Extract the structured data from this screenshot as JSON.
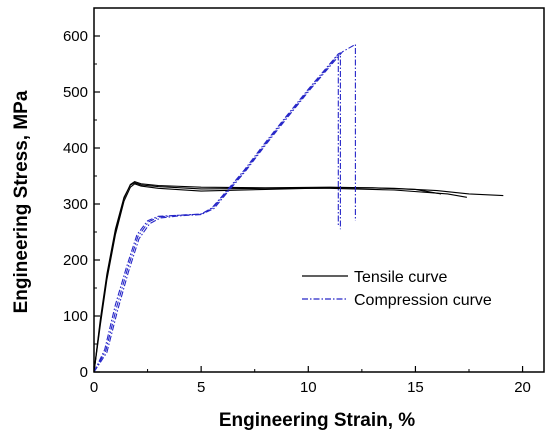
{
  "chart_data": {
    "type": "line",
    "title": "",
    "xlabel": "Engineering Strain, %",
    "ylabel": "Engineering Stress, MPa",
    "xlim": [
      0,
      21
    ],
    "ylim": [
      0,
      650
    ],
    "x_ticks": [
      0,
      5,
      10,
      15,
      20
    ],
    "y_ticks": [
      0,
      100,
      200,
      300,
      400,
      500,
      600
    ],
    "grid": false,
    "legend": "center-right",
    "series": [
      {
        "name": "Tensile curve",
        "color": "#000000",
        "style": "solid",
        "curves": [
          [
            [
              0,
              0
            ],
            [
              0.3,
              90
            ],
            [
              0.6,
              170
            ],
            [
              1.0,
              250
            ],
            [
              1.4,
              310
            ],
            [
              1.7,
              335
            ],
            [
              1.9,
              340
            ],
            [
              2.2,
              336
            ],
            [
              3,
              333
            ],
            [
              5,
              330
            ],
            [
              8,
              329
            ],
            [
              11,
              330
            ],
            [
              14,
              328
            ],
            [
              16,
              324
            ],
            [
              17.5,
              318
            ],
            [
              19.1,
              315
            ]
          ],
          [
            [
              0,
              0
            ],
            [
              0.3,
              85
            ],
            [
              0.6,
              165
            ],
            [
              1.0,
              245
            ],
            [
              1.4,
              305
            ],
            [
              1.7,
              330
            ],
            [
              1.9,
              336
            ],
            [
              2.2,
              332
            ],
            [
              3,
              328
            ],
            [
              5,
              323
            ],
            [
              8,
              326
            ],
            [
              11,
              329
            ],
            [
              13,
              329
            ],
            [
              15,
              326
            ],
            [
              16.2,
              318
            ]
          ],
          [
            [
              0,
              0
            ],
            [
              0.3,
              95
            ],
            [
              0.6,
              175
            ],
            [
              1.0,
              255
            ],
            [
              1.4,
              312
            ],
            [
              1.7,
              334
            ],
            [
              1.9,
              338
            ],
            [
              2.2,
              334
            ],
            [
              3,
              331
            ],
            [
              5,
              327
            ],
            [
              8,
              328
            ],
            [
              11,
              328
            ],
            [
              14,
              325
            ],
            [
              16.5,
              318
            ],
            [
              17.4,
              312
            ]
          ]
        ]
      },
      {
        "name": "Compression curve",
        "color": "#2626c8",
        "style": "dash-dot",
        "curves": [
          [
            [
              0,
              0
            ],
            [
              0.5,
              40
            ],
            [
              1.0,
              120
            ],
            [
              1.5,
              185
            ],
            [
              2.0,
              245
            ],
            [
              2.5,
              270
            ],
            [
              3.0,
              278
            ],
            [
              4.0,
              280
            ],
            [
              5.0,
              282
            ],
            [
              5.5,
              293
            ],
            [
              6.0,
              315
            ],
            [
              7,
              360
            ],
            [
              8,
              410
            ],
            [
              9,
              458
            ],
            [
              10,
              505
            ],
            [
              11,
              550
            ],
            [
              11.4,
              568
            ],
            [
              11.5,
              570
            ],
            [
              11.5,
              255
            ]
          ],
          [
            [
              0,
              0
            ],
            [
              0.6,
              35
            ],
            [
              1.1,
              110
            ],
            [
              1.6,
              178
            ],
            [
              2.1,
              238
            ],
            [
              2.6,
              265
            ],
            [
              3.1,
              275
            ],
            [
              4.0,
              279
            ],
            [
              5.0,
              281
            ],
            [
              5.6,
              292
            ],
            [
              6.1,
              315
            ],
            [
              7.1,
              360
            ],
            [
              8.1,
              410
            ],
            [
              9.1,
              458
            ],
            [
              10.1,
              505
            ],
            [
              11.1,
              550
            ],
            [
              11.6,
              572
            ],
            [
              12.2,
              585
            ],
            [
              12.2,
              270
            ]
          ],
          [
            [
              0,
              0
            ],
            [
              0.55,
              38
            ],
            [
              1.05,
              115
            ],
            [
              1.55,
              182
            ],
            [
              2.05,
              242
            ],
            [
              2.55,
              268
            ],
            [
              3.05,
              277
            ],
            [
              4.0,
              280
            ],
            [
              5.0,
              282
            ],
            [
              5.55,
              293
            ],
            [
              6.05,
              315
            ],
            [
              7.05,
              360
            ],
            [
              8.05,
              410
            ],
            [
              9.05,
              458
            ],
            [
              10.05,
              505
            ],
            [
              11.05,
              550
            ],
            [
              11.35,
              565
            ],
            [
              11.4,
              566
            ],
            [
              11.4,
              262
            ]
          ]
        ]
      }
    ]
  }
}
